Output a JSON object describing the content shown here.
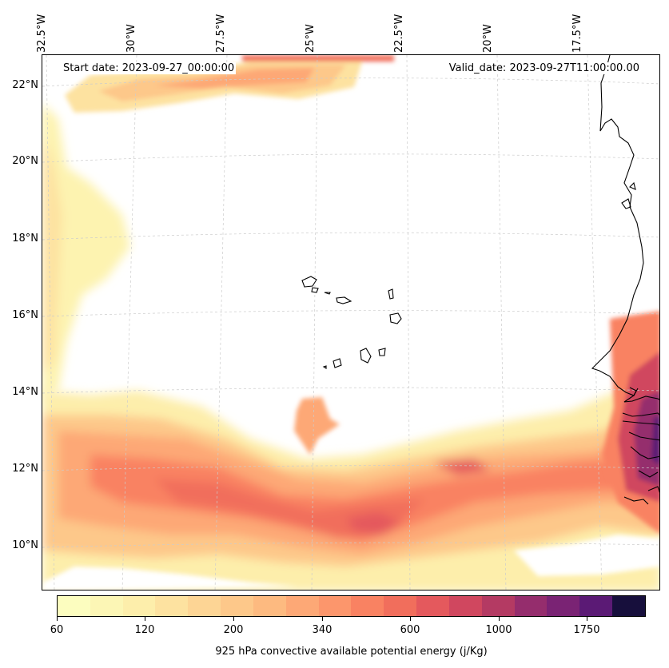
{
  "map": {
    "start_date": "Start date: 2023-09-27_00:00:00",
    "valid_date": "Valid_date: 2023-09-27T11:00:00.00",
    "longitude_labels": [
      "32.5°W",
      "30°W",
      "27.5°W",
      "25°W",
      "22.5°W",
      "20°W",
      "17.5°W"
    ],
    "latitude_labels": [
      "22°N",
      "20°N",
      "18°N",
      "16°N",
      "14°N",
      "12°N",
      "10°N"
    ],
    "variable": "925 hPa convective available potential energy (j/Kg)",
    "colorbar": {
      "tick_labels": [
        "60",
        "120",
        "200",
        "340",
        "600",
        "1000",
        "1750"
      ],
      "colors": [
        "#fcfdbf",
        "#fcf6b5",
        "#fdeeab",
        "#fde2a0",
        "#fdd595",
        "#fdc88a",
        "#fdba80",
        "#fda876",
        "#fc966c",
        "#f98262",
        "#f16e5c",
        "#e4595d",
        "#d0475f",
        "#b43a63",
        "#952d6d",
        "#7a2374",
        "#5b1a75",
        "#170f3c"
      ]
    }
  }
}
